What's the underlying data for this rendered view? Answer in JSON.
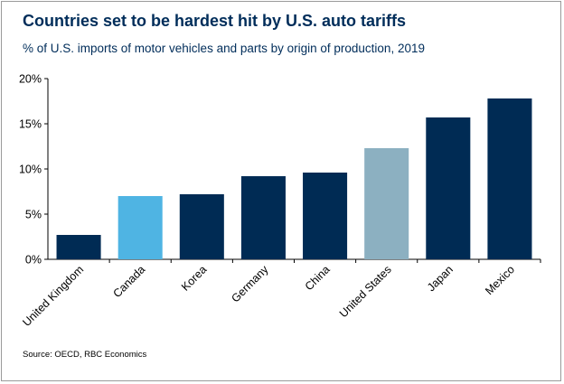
{
  "title": "Countries set to be hardest hit by U.S. auto tariffs",
  "subtitle": "% of U.S. imports of motor vehicles and parts by origin of production, 2019",
  "source": "Source: OECD, RBC Economics",
  "colors": {
    "navy": "#002b54",
    "highlight_blue": "#4fb4e3",
    "highlight_grey": "#8cb0c1",
    "axis": "#000000"
  },
  "chart_data": {
    "type": "bar",
    "title": "Countries set to be hardest hit by U.S. auto tariffs",
    "subtitle": "% of U.S. imports of motor vehicles and parts by origin of production, 2019",
    "categories": [
      "United Kingdom",
      "Canada",
      "Korea",
      "Germany",
      "China",
      "United States",
      "Japan",
      "Mexico"
    ],
    "values": [
      2.7,
      7.0,
      7.2,
      9.2,
      9.6,
      12.3,
      15.7,
      17.8
    ],
    "bar_colors": [
      "#002b54",
      "#4fb4e3",
      "#002b54",
      "#002b54",
      "#002b54",
      "#8cb0c1",
      "#002b54",
      "#002b54"
    ],
    "ylim": [
      0,
      20
    ],
    "yticks": [
      0,
      5,
      10,
      15,
      20
    ],
    "ytick_labels": [
      "0%",
      "5%",
      "10%",
      "15%",
      "20%"
    ],
    "xlabel": "",
    "ylabel": "",
    "grid": false,
    "legend": "none"
  }
}
